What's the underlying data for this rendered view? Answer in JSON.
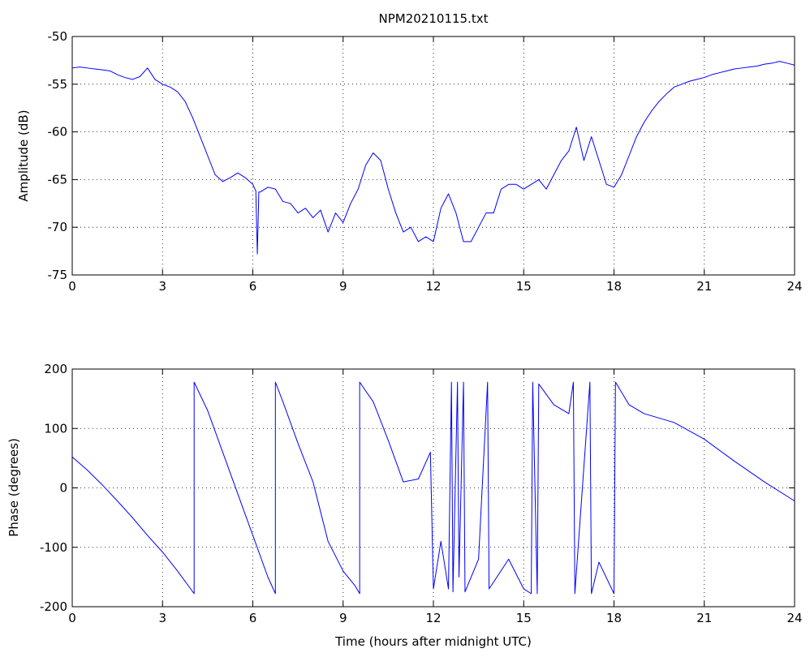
{
  "chart_data": [
    {
      "type": "line",
      "title": "NPM20210115.txt",
      "y_label": "Amplitude (dB)",
      "xlim": [
        0,
        24
      ],
      "xticks": [
        0,
        3,
        6,
        9,
        12,
        15,
        18,
        21,
        24
      ],
      "ylim": [
        -75,
        -50
      ],
      "yticks": [
        -75,
        -70,
        -65,
        -60,
        -55,
        -50
      ],
      "grid": true,
      "series": [
        {
          "color": "#0000ff",
          "x": [
            0,
            0.25,
            0.5,
            0.75,
            1,
            1.25,
            1.5,
            1.75,
            2,
            2.25,
            2.5,
            2.75,
            3,
            3.25,
            3.5,
            3.75,
            4,
            4.25,
            4.5,
            4.75,
            5,
            5.25,
            5.5,
            5.75,
            6,
            6.1,
            6.15,
            6.2,
            6.25,
            6.5,
            6.75,
            7,
            7.25,
            7.5,
            7.75,
            8,
            8.25,
            8.5,
            8.75,
            9,
            9.25,
            9.5,
            9.75,
            10,
            10.25,
            10.5,
            10.75,
            11,
            11.25,
            11.5,
            11.75,
            12,
            12.25,
            12.5,
            12.75,
            13,
            13.25,
            13.5,
            13.75,
            14,
            14.25,
            14.5,
            14.75,
            15,
            15.25,
            15.5,
            15.75,
            16,
            16.25,
            16.5,
            16.75,
            17,
            17.25,
            17.5,
            17.75,
            18,
            18.25,
            18.5,
            18.75,
            19,
            19.25,
            19.5,
            19.75,
            20,
            20.25,
            20.5,
            20.75,
            21,
            21.25,
            21.5,
            21.75,
            22,
            22.25,
            22.5,
            22.75,
            23,
            23.25,
            23.5,
            23.75,
            24
          ],
          "values": [
            -53.3,
            -53.2,
            -53.3,
            -53.4,
            -53.5,
            -53.6,
            -54,
            -54.3,
            -54.5,
            -54.2,
            -53.3,
            -54.5,
            -55,
            -55.3,
            -55.8,
            -56.8,
            -58.5,
            -60.5,
            -62.5,
            -64.5,
            -65.2,
            -64.8,
            -64.3,
            -64.8,
            -65.5,
            -66.2,
            -72.8,
            -66.3,
            -66.3,
            -65.8,
            -66,
            -67.3,
            -67.5,
            -68.5,
            -68,
            -69,
            -68.2,
            -70.5,
            -68.5,
            -69.5,
            -67.5,
            -66,
            -63.5,
            -62.2,
            -63,
            -66,
            -68.5,
            -70.5,
            -70,
            -71.5,
            -71,
            -71.5,
            -68,
            -66.5,
            -68.5,
            -71.5,
            -71.5,
            -70,
            -68.5,
            -68.5,
            -66,
            -65.5,
            -65.5,
            -66,
            -65.5,
            -65,
            -66,
            -64.5,
            -63,
            -62,
            -59.5,
            -63,
            -60.5,
            -63,
            -65.5,
            -65.8,
            -64.5,
            -62.5,
            -60.5,
            -59,
            -57.8,
            -56.8,
            -56,
            -55.3,
            -55,
            -54.7,
            -54.5,
            -54.3,
            -54,
            -53.8,
            -53.6,
            -53.4,
            -53.3,
            -53.2,
            -53.1,
            -52.9,
            -52.8,
            -52.6,
            -52.8,
            -53
          ]
        }
      ]
    },
    {
      "type": "line",
      "x_label": "Time (hours after midnight UTC)",
      "y_label": "Phase (degrees)",
      "xlim": [
        0,
        24
      ],
      "xticks": [
        0,
        3,
        6,
        9,
        12,
        15,
        18,
        21,
        24
      ],
      "ylim": [
        -200,
        200
      ],
      "yticks": [
        -200,
        -100,
        0,
        100,
        200
      ],
      "grid": true,
      "series": [
        {
          "color": "#0000ff",
          "x": [
            0,
            0.5,
            1,
            1.5,
            2,
            2.5,
            3,
            3.5,
            4.05,
            4.05,
            4.5,
            5,
            5.5,
            6,
            6.5,
            6.75,
            6.75,
            7,
            7.5,
            8,
            8.5,
            9,
            9.4,
            9.55,
            9.55,
            10,
            10.5,
            11,
            11.5,
            11.9,
            12,
            12.25,
            12.5,
            12.6,
            12.65,
            12.8,
            12.85,
            13,
            13.05,
            13.5,
            13.8,
            13.85,
            14.5,
            15,
            15.25,
            15.3,
            15.45,
            15.5,
            16,
            16.5,
            16.65,
            16.7,
            17.2,
            17.25,
            17.5,
            18,
            18.05,
            18.5,
            19,
            20,
            21,
            22,
            23,
            24
          ],
          "values": [
            52,
            30,
            5,
            -22,
            -50,
            -80,
            -108,
            -140,
            -178,
            178,
            130,
            60,
            -10,
            -80,
            -150,
            -178,
            178,
            145,
            75,
            10,
            -90,
            -140,
            -165,
            -178,
            178,
            145,
            80,
            10,
            15,
            60,
            -170,
            -90,
            -170,
            178,
            -175,
            178,
            -150,
            178,
            -175,
            -120,
            178,
            -170,
            -120,
            -170,
            -178,
            178,
            -178,
            175,
            140,
            125,
            178,
            -178,
            178,
            -178,
            -125,
            -178,
            178,
            140,
            125,
            110,
            82,
            45,
            10,
            -22
          ]
        }
      ]
    }
  ]
}
